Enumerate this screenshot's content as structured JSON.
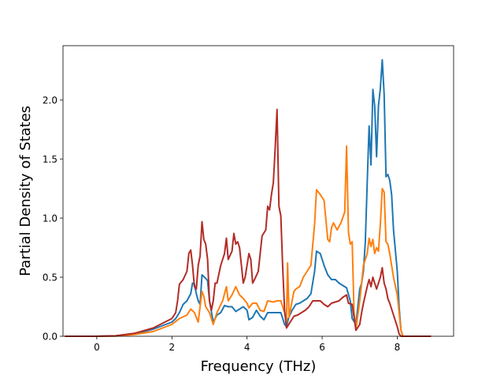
{
  "chart_data": {
    "type": "line",
    "xlabel": "Frequency (THz)",
    "ylabel": "Partial Density of States",
    "xlim": [
      -0.9,
      9.5
    ],
    "ylim": [
      0.0,
      2.46
    ],
    "xticks": [
      0,
      2,
      4,
      6,
      8
    ],
    "xtick_labels": [
      "0",
      "2",
      "4",
      "6",
      "8"
    ],
    "yticks": [
      0.0,
      0.5,
      1.0,
      1.5,
      2.0
    ],
    "ytick_labels": [
      "0.0",
      "0.5",
      "1.0",
      "1.5",
      "2.0"
    ],
    "grid": false,
    "series": [
      {
        "color": "#1f77b4",
        "points": [
          [
            -0.85,
            0
          ],
          [
            0,
            0
          ],
          [
            0.5,
            0.003
          ],
          [
            1,
            0.02
          ],
          [
            1.5,
            0.06
          ],
          [
            2,
            0.12
          ],
          [
            2.1,
            0.15
          ],
          [
            2.2,
            0.2
          ],
          [
            2.3,
            0.27
          ],
          [
            2.4,
            0.3
          ],
          [
            2.5,
            0.36
          ],
          [
            2.55,
            0.45
          ],
          [
            2.6,
            0.44
          ],
          [
            2.65,
            0.36
          ],
          [
            2.7,
            0.3
          ],
          [
            2.75,
            0.27
          ],
          [
            2.8,
            0.52
          ],
          [
            2.9,
            0.49
          ],
          [
            2.95,
            0.47
          ],
          [
            3.0,
            0.3
          ],
          [
            3.1,
            0.12
          ],
          [
            3.2,
            0.18
          ],
          [
            3.3,
            0.2
          ],
          [
            3.4,
            0.26
          ],
          [
            3.5,
            0.25
          ],
          [
            3.6,
            0.25
          ],
          [
            3.7,
            0.21
          ],
          [
            3.8,
            0.23
          ],
          [
            3.9,
            0.25
          ],
          [
            4.0,
            0.22
          ],
          [
            4.05,
            0.14
          ],
          [
            4.15,
            0.16
          ],
          [
            4.25,
            0.22
          ],
          [
            4.35,
            0.17
          ],
          [
            4.45,
            0.14
          ],
          [
            4.55,
            0.2
          ],
          [
            4.7,
            0.2
          ],
          [
            4.8,
            0.2
          ],
          [
            4.9,
            0.2
          ],
          [
            5.0,
            0.1
          ],
          [
            5.05,
            0.08
          ],
          [
            5.1,
            0.15
          ],
          [
            5.2,
            0.22
          ],
          [
            5.3,
            0.27
          ],
          [
            5.4,
            0.28
          ],
          [
            5.5,
            0.3
          ],
          [
            5.6,
            0.32
          ],
          [
            5.7,
            0.36
          ],
          [
            5.8,
            0.55
          ],
          [
            5.85,
            0.72
          ],
          [
            5.95,
            0.7
          ],
          [
            6.05,
            0.6
          ],
          [
            6.15,
            0.52
          ],
          [
            6.25,
            0.48
          ],
          [
            6.35,
            0.48
          ],
          [
            6.45,
            0.45
          ],
          [
            6.55,
            0.43
          ],
          [
            6.65,
            0.41
          ],
          [
            6.75,
            0.3
          ],
          [
            6.8,
            0.15
          ],
          [
            6.9,
            0.1
          ],
          [
            7.0,
            0.4
          ],
          [
            7.05,
            0.45
          ],
          [
            7.1,
            0.55
          ],
          [
            7.15,
            0.8
          ],
          [
            7.2,
            1.3
          ],
          [
            7.25,
            1.78
          ],
          [
            7.3,
            1.45
          ],
          [
            7.35,
            2.09
          ],
          [
            7.4,
            1.95
          ],
          [
            7.45,
            1.52
          ],
          [
            7.5,
            1.95
          ],
          [
            7.55,
            2.1
          ],
          [
            7.6,
            2.34
          ],
          [
            7.65,
            2.05
          ],
          [
            7.7,
            1.35
          ],
          [
            7.75,
            1.37
          ],
          [
            7.8,
            1.32
          ],
          [
            7.85,
            1.2
          ],
          [
            7.9,
            0.9
          ],
          [
            8.0,
            0.55
          ],
          [
            8.05,
            0.25
          ],
          [
            8.1,
            0.05
          ],
          [
            8.15,
            0
          ],
          [
            8.9,
            0
          ]
        ]
      },
      {
        "color": "#ff7f0e",
        "points": [
          [
            -0.85,
            0
          ],
          [
            0,
            0
          ],
          [
            0.5,
            0.002
          ],
          [
            1,
            0.015
          ],
          [
            1.5,
            0.04
          ],
          [
            2,
            0.1
          ],
          [
            2.2,
            0.15
          ],
          [
            2.4,
            0.18
          ],
          [
            2.5,
            0.23
          ],
          [
            2.6,
            0.2
          ],
          [
            2.7,
            0.12
          ],
          [
            2.8,
            0.38
          ],
          [
            2.85,
            0.34
          ],
          [
            2.9,
            0.25
          ],
          [
            3.0,
            0.2
          ],
          [
            3.1,
            0.1
          ],
          [
            3.2,
            0.2
          ],
          [
            3.35,
            0.3
          ],
          [
            3.45,
            0.42
          ],
          [
            3.5,
            0.3
          ],
          [
            3.6,
            0.35
          ],
          [
            3.7,
            0.42
          ],
          [
            3.8,
            0.35
          ],
          [
            3.9,
            0.32
          ],
          [
            4.0,
            0.28
          ],
          [
            4.05,
            0.24
          ],
          [
            4.15,
            0.28
          ],
          [
            4.25,
            0.28
          ],
          [
            4.35,
            0.22
          ],
          [
            4.45,
            0.21
          ],
          [
            4.55,
            0.3
          ],
          [
            4.7,
            0.29
          ],
          [
            4.8,
            0.3
          ],
          [
            4.9,
            0.3
          ],
          [
            5.0,
            0.2
          ],
          [
            5.05,
            0.12
          ],
          [
            5.08,
            0.62
          ],
          [
            5.12,
            0.16
          ],
          [
            5.2,
            0.3
          ],
          [
            5.25,
            0.38
          ],
          [
            5.3,
            0.4
          ],
          [
            5.4,
            0.42
          ],
          [
            5.5,
            0.5
          ],
          [
            5.6,
            0.55
          ],
          [
            5.7,
            0.6
          ],
          [
            5.8,
            0.95
          ],
          [
            5.85,
            1.24
          ],
          [
            5.95,
            1.2
          ],
          [
            6.05,
            1.15
          ],
          [
            6.15,
            0.82
          ],
          [
            6.2,
            0.8
          ],
          [
            6.25,
            0.92
          ],
          [
            6.3,
            0.96
          ],
          [
            6.4,
            0.9
          ],
          [
            6.5,
            0.96
          ],
          [
            6.6,
            1.05
          ],
          [
            6.65,
            1.61
          ],
          [
            6.7,
            0.88
          ],
          [
            6.75,
            0.78
          ],
          [
            6.8,
            0.8
          ],
          [
            6.85,
            0.2
          ],
          [
            6.9,
            0.06
          ],
          [
            7.0,
            0.3
          ],
          [
            7.05,
            0.45
          ],
          [
            7.1,
            0.6
          ],
          [
            7.15,
            0.65
          ],
          [
            7.2,
            0.7
          ],
          [
            7.25,
            0.83
          ],
          [
            7.3,
            0.76
          ],
          [
            7.35,
            0.82
          ],
          [
            7.4,
            0.7
          ],
          [
            7.45,
            0.75
          ],
          [
            7.5,
            0.72
          ],
          [
            7.55,
            0.95
          ],
          [
            7.6,
            1.25
          ],
          [
            7.65,
            1.22
          ],
          [
            7.7,
            0.8
          ],
          [
            7.75,
            0.78
          ],
          [
            7.8,
            0.7
          ],
          [
            7.9,
            0.5
          ],
          [
            8.0,
            0.35
          ],
          [
            8.05,
            0.2
          ],
          [
            8.1,
            0.05
          ],
          [
            8.15,
            0
          ],
          [
            8.9,
            0
          ]
        ]
      },
      {
        "color": "#b22c26",
        "points": [
          [
            -0.85,
            0
          ],
          [
            0,
            0
          ],
          [
            0.5,
            0.004
          ],
          [
            1,
            0.025
          ],
          [
            1.5,
            0.07
          ],
          [
            2,
            0.15
          ],
          [
            2.1,
            0.2
          ],
          [
            2.15,
            0.3
          ],
          [
            2.2,
            0.44
          ],
          [
            2.3,
            0.48
          ],
          [
            2.4,
            0.55
          ],
          [
            2.45,
            0.7
          ],
          [
            2.5,
            0.73
          ],
          [
            2.55,
            0.6
          ],
          [
            2.6,
            0.42
          ],
          [
            2.65,
            0.4
          ],
          [
            2.7,
            0.6
          ],
          [
            2.75,
            0.68
          ],
          [
            2.8,
            0.97
          ],
          [
            2.85,
            0.82
          ],
          [
            2.9,
            0.78
          ],
          [
            2.95,
            0.65
          ],
          [
            3.0,
            0.3
          ],
          [
            3.05,
            0.22
          ],
          [
            3.1,
            0.3
          ],
          [
            3.15,
            0.45
          ],
          [
            3.2,
            0.45
          ],
          [
            3.3,
            0.6
          ],
          [
            3.4,
            0.7
          ],
          [
            3.45,
            0.83
          ],
          [
            3.5,
            0.65
          ],
          [
            3.6,
            0.72
          ],
          [
            3.65,
            0.87
          ],
          [
            3.7,
            0.78
          ],
          [
            3.75,
            0.8
          ],
          [
            3.8,
            0.75
          ],
          [
            3.9,
            0.45
          ],
          [
            3.95,
            0.5
          ],
          [
            4.05,
            0.7
          ],
          [
            4.1,
            0.65
          ],
          [
            4.15,
            0.45
          ],
          [
            4.2,
            0.48
          ],
          [
            4.3,
            0.55
          ],
          [
            4.4,
            0.85
          ],
          [
            4.5,
            0.9
          ],
          [
            4.55,
            1.1
          ],
          [
            4.6,
            1.07
          ],
          [
            4.65,
            1.2
          ],
          [
            4.7,
            1.3
          ],
          [
            4.75,
            1.6
          ],
          [
            4.8,
            1.92
          ],
          [
            4.85,
            1.1
          ],
          [
            4.9,
            1.02
          ],
          [
            4.95,
            0.58
          ],
          [
            5.0,
            0.22
          ],
          [
            5.05,
            0.07
          ],
          [
            5.15,
            0.12
          ],
          [
            5.25,
            0.17
          ],
          [
            5.35,
            0.18
          ],
          [
            5.45,
            0.2
          ],
          [
            5.55,
            0.22
          ],
          [
            5.65,
            0.25
          ],
          [
            5.75,
            0.3
          ],
          [
            5.85,
            0.3
          ],
          [
            5.95,
            0.3
          ],
          [
            6.05,
            0.27
          ],
          [
            6.15,
            0.25
          ],
          [
            6.25,
            0.28
          ],
          [
            6.35,
            0.29
          ],
          [
            6.45,
            0.3
          ],
          [
            6.55,
            0.33
          ],
          [
            6.65,
            0.35
          ],
          [
            6.7,
            0.28
          ],
          [
            6.8,
            0.27
          ],
          [
            6.9,
            0.05
          ],
          [
            7.0,
            0.1
          ],
          [
            7.05,
            0.2
          ],
          [
            7.1,
            0.28
          ],
          [
            7.15,
            0.35
          ],
          [
            7.2,
            0.42
          ],
          [
            7.25,
            0.48
          ],
          [
            7.3,
            0.42
          ],
          [
            7.35,
            0.5
          ],
          [
            7.4,
            0.45
          ],
          [
            7.45,
            0.4
          ],
          [
            7.5,
            0.45
          ],
          [
            7.55,
            0.5
          ],
          [
            7.6,
            0.58
          ],
          [
            7.65,
            0.45
          ],
          [
            7.7,
            0.4
          ],
          [
            7.75,
            0.32
          ],
          [
            7.8,
            0.28
          ],
          [
            7.9,
            0.18
          ],
          [
            8.0,
            0.08
          ],
          [
            8.05,
            0.02
          ],
          [
            8.1,
            0
          ],
          [
            8.9,
            0
          ]
        ]
      }
    ]
  }
}
